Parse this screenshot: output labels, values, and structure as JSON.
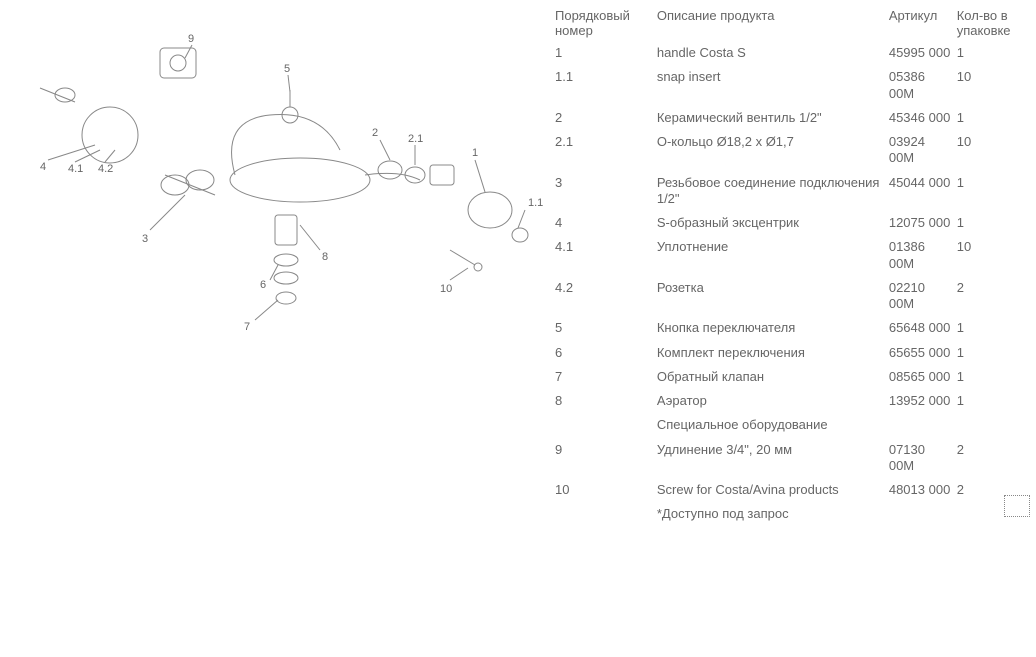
{
  "headers": {
    "num": "Порядковый номер",
    "desc": "Описание продукта",
    "art": "Артикул",
    "qty": "Кол-во в упаковке"
  },
  "rows": [
    {
      "num": "1",
      "desc": "handle Costa S",
      "art": "45995 000",
      "qty": "1"
    },
    {
      "num": "1.1",
      "desc": "snap insert",
      "art": "05386 00M",
      "qty": "10"
    },
    {
      "num": "2",
      "desc": "Керамический вентиль 1/2\"",
      "art": "45346 000",
      "qty": "1"
    },
    {
      "num": "2.1",
      "desc": "O-кольцо Ø18,2 x Ø1,7",
      "art": "03924 00M",
      "qty": "10"
    },
    {
      "num": "3",
      "desc": "Резьбовое соединение подключения 1/2\"",
      "art": "45044 000",
      "qty": "1"
    },
    {
      "num": "4",
      "desc": "S-образный эксцентрик",
      "art": "12075 000",
      "qty": "1"
    },
    {
      "num": "4.1",
      "desc": "Уплотнение",
      "art": "01386 00M",
      "qty": "10"
    },
    {
      "num": "4.2",
      "desc": "Розетка",
      "art": "02210 00M",
      "qty": "2"
    },
    {
      "num": "5",
      "desc": "Кнопка переключателя",
      "art": "65648 000",
      "qty": "1"
    },
    {
      "num": "6",
      "desc": "Комплект переключения",
      "art": "65655 000",
      "qty": "1"
    },
    {
      "num": "7",
      "desc": "Обратный клапан",
      "art": "08565 000",
      "qty": "1"
    },
    {
      "num": "8",
      "desc": "Аэратор",
      "art": "13952 000",
      "qty": "1"
    }
  ],
  "section2_title": "Специальное оборудование",
  "rows2": [
    {
      "num": "9",
      "desc": "Удлинение 3/4\", 20 мм",
      "art": "07130 00M",
      "qty": "2"
    },
    {
      "num": "10",
      "desc": "Screw for Costa/Avina products",
      "art": "48013 000",
      "qty": "2"
    }
  ],
  "footnote": "*Доступно под запрос",
  "diagram": {
    "labels": [
      "1",
      "1.1",
      "2",
      "2.1",
      "3",
      "4",
      "4.1",
      "4.2",
      "5",
      "6",
      "7",
      "8",
      "9",
      "10"
    ],
    "stroke": "#888888",
    "label_color": "#666666",
    "label_fontsize": 11
  }
}
